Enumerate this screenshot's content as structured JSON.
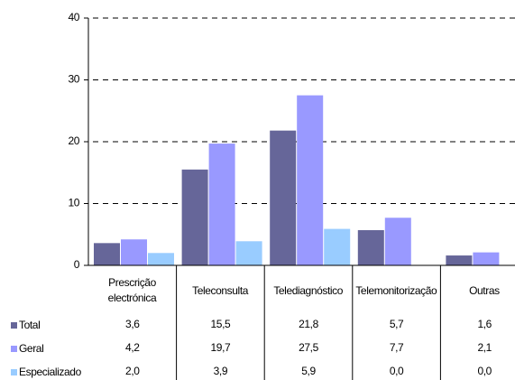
{
  "chart_data": {
    "type": "bar",
    "categories": [
      "Prescrição electrónica",
      "Teleconsulta",
      "Telediagnóstico",
      "Telemonitorização",
      "Outras"
    ],
    "series": [
      {
        "name": "Total",
        "color": "#666699",
        "values": [
          3.6,
          15.5,
          21.8,
          5.7,
          1.6
        ],
        "value_labels": [
          "3,6",
          "15,5",
          "21,8",
          "5,7",
          "1,6"
        ]
      },
      {
        "name": "Geral",
        "color": "#9999ff",
        "values": [
          4.2,
          19.7,
          27.5,
          7.7,
          2.1
        ],
        "value_labels": [
          "4,2",
          "19,7",
          "27,5",
          "7,7",
          "2,1"
        ]
      },
      {
        "name": "Especializado",
        "color": "#99ccff",
        "values": [
          2.0,
          3.9,
          5.9,
          0.0,
          0.0
        ],
        "value_labels": [
          "2,0",
          "3,9",
          "5,9",
          "0,0",
          "0,0"
        ]
      }
    ],
    "ylim": [
      0,
      40
    ],
    "yticks": [
      0,
      10,
      20,
      30,
      40
    ],
    "grid": true
  }
}
